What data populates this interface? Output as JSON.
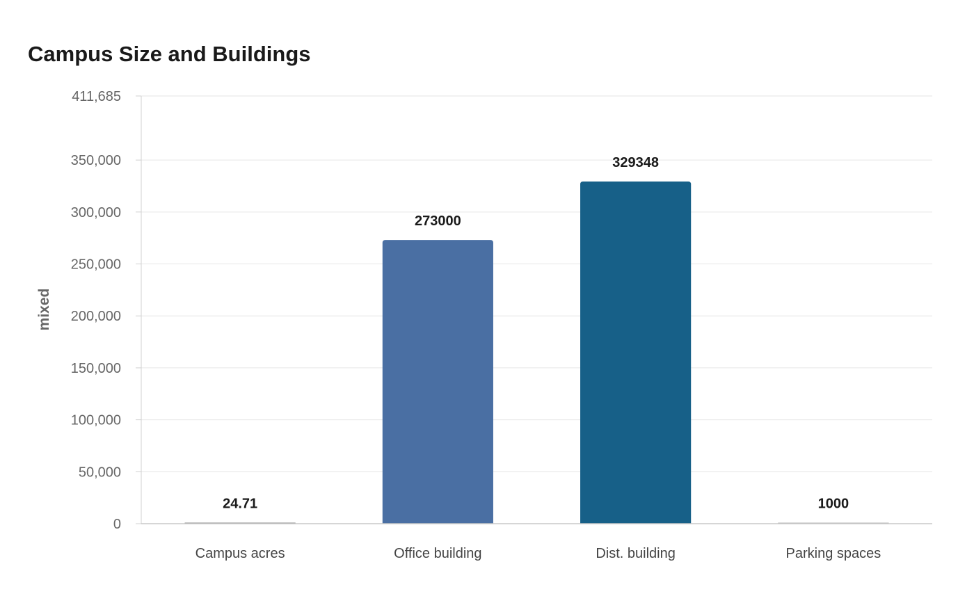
{
  "chart_data": {
    "type": "bar",
    "title": "Campus Size and Buildings",
    "xlabel": "",
    "ylabel": "mixed",
    "categories": [
      "Campus acres",
      "Office building",
      "Dist. building",
      "Parking spaces"
    ],
    "values": [
      24.71,
      273000,
      329348,
      1000
    ],
    "data_labels": [
      "24.71",
      "273000",
      "329348",
      "1000"
    ],
    "colors": [
      "#8c8c8c",
      "#4a6fa3",
      "#176088",
      "#b8b8b8"
    ],
    "ylim": [
      0,
      411685
    ],
    "yticks": [
      0,
      50000,
      100000,
      150000,
      200000,
      250000,
      300000,
      350000,
      411685
    ],
    "ytick_labels": [
      "0",
      "50,000",
      "100,000",
      "150,000",
      "200,000",
      "250,000",
      "300,000",
      "350,000",
      "411,685"
    ],
    "grid": true,
    "legend": "none"
  }
}
